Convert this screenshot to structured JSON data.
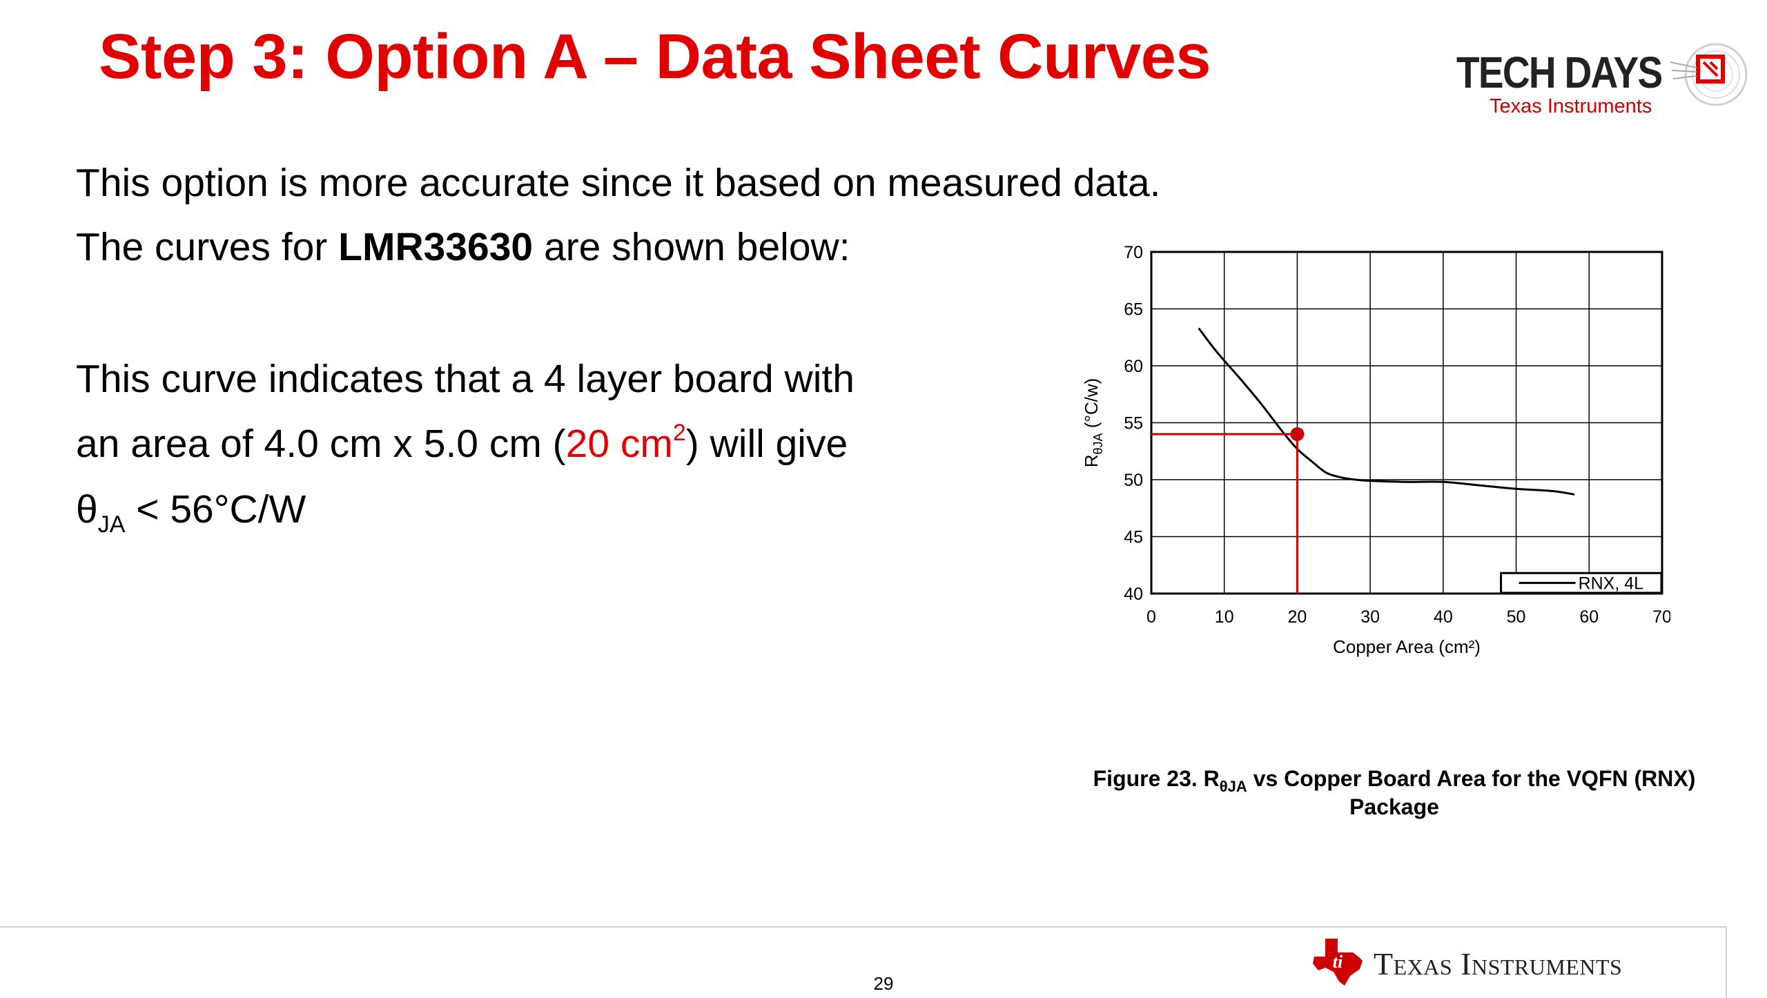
{
  "slide": {
    "title": "Step 3: Option A – Data Sheet Curves",
    "para1_line1": "This option is more accurate since it based on measured data.",
    "para1_line2_pre": "The curves for ",
    "para1_line2_bold": "LMR33630",
    "para1_line2_post": " are shown below:",
    "para2_line1": "This curve indicates that a 4 layer board with",
    "para2_line2_pre": "an area of 4.0 cm x 5.0 cm (",
    "para2_line2_red": "20 cm",
    "para2_line2_red_sup": "2",
    "para2_line2_post": ") will give",
    "para2_line3_theta": "θ",
    "para2_line3_sub": "JA",
    "para2_line3_post": " < 56°C/W",
    "page_number": "29",
    "accent_color": "#e00000"
  },
  "logos": {
    "tech_days": "TECH DAYS",
    "tech_days_sub": "Texas Instruments",
    "ti": "Texas Instruments"
  },
  "caption": {
    "prefix": "Figure 23. R",
    "sub": "θJA",
    "suffix": " vs Copper Board Area for the VQFN (RNX)",
    "line2": "Package"
  },
  "chart_data": {
    "type": "line",
    "xlabel": "Copper Area (cm²)",
    "ylabel_main": "R",
    "ylabel_sub": "θJA",
    "ylabel_unit": " (°C/w)",
    "xlim": [
      0,
      70
    ],
    "ylim": [
      40,
      70
    ],
    "xticks": [
      0,
      10,
      20,
      30,
      40,
      50,
      60,
      70
    ],
    "yticks": [
      40,
      45,
      50,
      55,
      60,
      65,
      70
    ],
    "grid": true,
    "legend_position": "bottom-right",
    "series": [
      {
        "name": "RNX, 4L",
        "color": "#000000",
        "x": [
          6.5,
          9,
          12,
          15,
          18,
          20,
          22,
          24,
          26,
          28,
          30,
          35,
          40,
          45,
          50,
          55,
          58
        ],
        "y": [
          63.3,
          61.2,
          59.0,
          56.7,
          54.2,
          52.7,
          51.6,
          50.6,
          50.2,
          50.0,
          49.9,
          49.8,
          49.8,
          49.5,
          49.2,
          49.0,
          48.7
        ]
      }
    ],
    "annotation": {
      "x": 20,
      "y": 54,
      "color": "#cc0000"
    }
  }
}
